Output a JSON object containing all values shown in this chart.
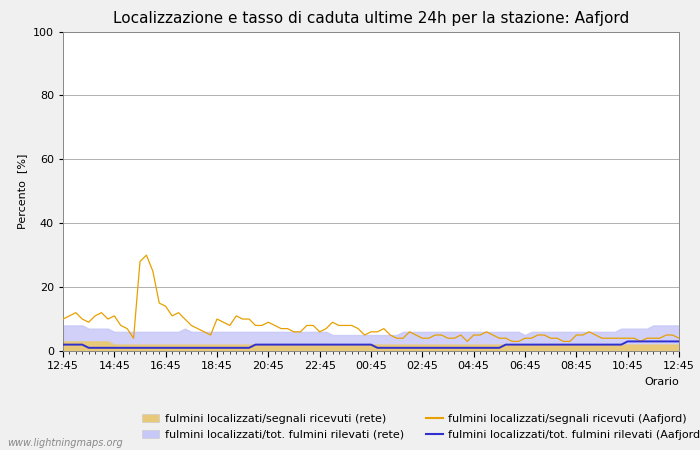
{
  "title": "Localizzazione e tasso di caduta ultime 24h per la stazione: Aafjord",
  "ylabel": "Percento  [%]",
  "xlabel": "Orario",
  "ylim": [
    0,
    100
  ],
  "yticks": [
    0,
    20,
    40,
    60,
    80,
    100
  ],
  "x_tick_labels": [
    "12:45",
    "14:45",
    "16:45",
    "18:45",
    "20:45",
    "22:45",
    "00:45",
    "02:45",
    "04:45",
    "06:45",
    "08:45",
    "10:45",
    "12:45"
  ],
  "watermark": "www.lightningmaps.org",
  "orange_line": [
    10,
    11,
    12,
    10,
    9,
    11,
    12,
    10,
    11,
    8,
    7,
    4,
    28,
    30,
    25,
    15,
    14,
    11,
    12,
    10,
    8,
    7,
    6,
    5,
    10,
    9,
    8,
    11,
    10,
    10,
    8,
    8,
    9,
    8,
    7,
    7,
    6,
    6,
    8,
    8,
    6,
    7,
    9,
    8,
    8,
    8,
    7,
    5,
    6,
    6,
    7,
    5,
    4,
    4,
    6,
    5,
    4,
    4,
    5,
    5,
    4,
    4,
    5,
    3,
    5,
    5,
    6,
    5,
    4,
    4,
    3,
    3,
    4,
    4,
    5,
    5,
    4,
    4,
    3,
    3,
    5,
    5,
    6,
    5,
    4,
    4,
    4,
    4,
    4,
    4,
    3,
    4,
    4,
    4,
    5,
    5,
    4
  ],
  "blue_line": [
    2,
    2,
    2,
    2,
    1,
    1,
    1,
    1,
    1,
    1,
    1,
    1,
    1,
    1,
    1,
    1,
    1,
    1,
    1,
    1,
    1,
    1,
    1,
    1,
    1,
    1,
    1,
    1,
    1,
    1,
    2,
    2,
    2,
    2,
    2,
    2,
    2,
    2,
    2,
    2,
    2,
    2,
    2,
    2,
    2,
    2,
    2,
    2,
    2,
    1,
    1,
    1,
    1,
    1,
    1,
    1,
    1,
    1,
    1,
    1,
    1,
    1,
    1,
    1,
    1,
    1,
    1,
    1,
    1,
    2,
    2,
    2,
    2,
    2,
    2,
    2,
    2,
    2,
    2,
    2,
    2,
    2,
    2,
    2,
    2,
    2,
    2,
    2,
    3,
    3,
    3,
    3,
    3,
    3,
    3,
    3,
    3
  ],
  "fill_orange": [
    3,
    3,
    3,
    3,
    3,
    3,
    3,
    3,
    2,
    2,
    2,
    2,
    2,
    2,
    2,
    2,
    2,
    2,
    2,
    2,
    2,
    2,
    2,
    2,
    2,
    2,
    2,
    2,
    2,
    2,
    2,
    2,
    2,
    2,
    2,
    2,
    2,
    2,
    2,
    2,
    2,
    2,
    2,
    2,
    2,
    2,
    2,
    2,
    2,
    2,
    2,
    2,
    2,
    2,
    2,
    2,
    2,
    2,
    2,
    2,
    2,
    2,
    2,
    2,
    2,
    2,
    2,
    2,
    2,
    2,
    2,
    2,
    2,
    2,
    2,
    2,
    2,
    2,
    2,
    2,
    2,
    2,
    2,
    2,
    2,
    2,
    2,
    2,
    2,
    2,
    2,
    2,
    2,
    2,
    2,
    2,
    2
  ],
  "fill_blue": [
    8,
    8,
    8,
    8,
    7,
    7,
    7,
    7,
    6,
    6,
    6,
    6,
    6,
    6,
    6,
    6,
    6,
    6,
    6,
    7,
    6,
    6,
    6,
    6,
    6,
    6,
    6,
    6,
    6,
    6,
    6,
    6,
    6,
    6,
    6,
    6,
    6,
    6,
    6,
    6,
    6,
    6,
    5,
    5,
    5,
    5,
    5,
    5,
    5,
    5,
    5,
    5,
    5,
    6,
    6,
    6,
    6,
    6,
    6,
    6,
    6,
    6,
    6,
    6,
    6,
    6,
    6,
    6,
    6,
    6,
    6,
    6,
    5,
    6,
    6,
    6,
    6,
    6,
    6,
    6,
    6,
    6,
    6,
    6,
    6,
    6,
    6,
    7,
    7,
    7,
    7,
    7,
    8,
    8,
    8,
    8,
    8
  ],
  "color_orange_fill": "#e8c97a",
  "color_blue_fill": "#c8c8f8",
  "color_orange_line": "#e8a000",
  "color_blue_line": "#3030d0",
  "background_color": "#f0f0f0",
  "plot_bg_color": "#ffffff",
  "grid_color": "#b0b0b0",
  "title_fontsize": 11,
  "label_fontsize": 8,
  "tick_fontsize": 8,
  "legend_fontsize": 8
}
